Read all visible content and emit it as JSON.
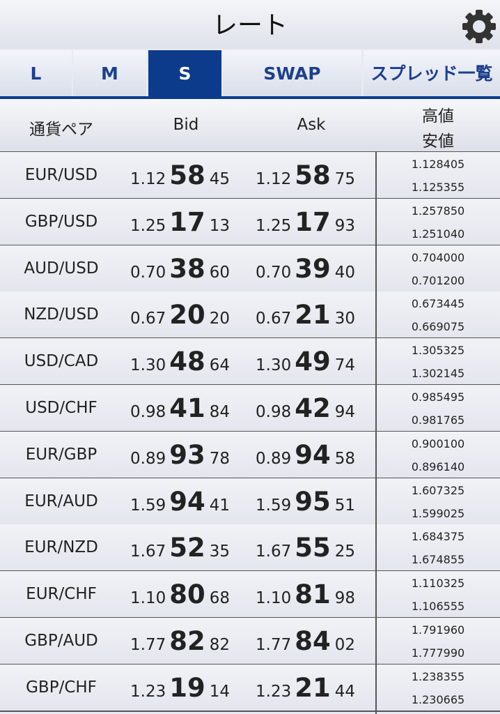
{
  "header": {
    "title": "レート"
  },
  "tabs": [
    "L",
    "M",
    "S",
    "SWAP",
    "スプレッド一覧"
  ],
  "selected_tab": 2,
  "columns": {
    "pair": "通貨ペア",
    "bid": "Bid",
    "ask": "Ask",
    "high": "高値",
    "low": "安値"
  },
  "rows": [
    {
      "pair": "EUR/USD",
      "bid": [
        "1.12",
        "58",
        "45"
      ],
      "ask": [
        "1.12",
        "58",
        "75"
      ],
      "high": "1.128405",
      "low": "1.125355"
    },
    {
      "pair": "GBP/USD",
      "bid": [
        "1.25",
        "17",
        "13"
      ],
      "ask": [
        "1.25",
        "17",
        "93"
      ],
      "high": "1.257850",
      "low": "1.251040"
    },
    {
      "pair": "AUD/USD",
      "bid": [
        "0.70",
        "38",
        "60"
      ],
      "ask": [
        "0.70",
        "39",
        "40"
      ],
      "high": "0.704000",
      "low": "0.701200"
    },
    {
      "pair": "NZD/USD",
      "bid": [
        "0.67",
        "20",
        "20"
      ],
      "ask": [
        "0.67",
        "21",
        "30"
      ],
      "high": "0.673445",
      "low": "0.669075"
    },
    {
      "pair": "USD/CAD",
      "bid": [
        "1.30",
        "48",
        "64"
      ],
      "ask": [
        "1.30",
        "49",
        "74"
      ],
      "high": "1.305325",
      "low": "1.302145"
    },
    {
      "pair": "USD/CHF",
      "bid": [
        "0.98",
        "41",
        "84"
      ],
      "ask": [
        "0.98",
        "42",
        "94"
      ],
      "high": "0.985495",
      "low": "0.981765"
    },
    {
      "pair": "EUR/GBP",
      "bid": [
        "0.89",
        "93",
        "78"
      ],
      "ask": [
        "0.89",
        "94",
        "58"
      ],
      "high": "0.900100",
      "low": "0.896140"
    },
    {
      "pair": "EUR/AUD",
      "bid": [
        "1.59",
        "94",
        "41"
      ],
      "ask": [
        "1.59",
        "95",
        "51"
      ],
      "high": "1.607325",
      "low": "1.599025"
    },
    {
      "pair": "EUR/NZD",
      "bid": [
        "1.67",
        "52",
        "35"
      ],
      "ask": [
        "1.67",
        "55",
        "25"
      ],
      "high": "1.684375",
      "low": "1.674855"
    },
    {
      "pair": "EUR/CHF",
      "bid": [
        "1.10",
        "80",
        "68"
      ],
      "ask": [
        "1.10",
        "81",
        "98"
      ],
      "high": "1.110325",
      "low": "1.106555"
    },
    {
      "pair": "GBP/AUD",
      "bid": [
        "1.77",
        "82",
        "82"
      ],
      "ask": [
        "1.77",
        "84",
        "02"
      ],
      "high": "1.791960",
      "low": "1.777990"
    },
    {
      "pair": "GBP/CHF",
      "bid": [
        "1.23",
        "19",
        "14"
      ],
      "ask": [
        "1.23",
        "21",
        "44"
      ],
      "high": "1.238355",
      "low": "1.230665"
    }
  ]
}
